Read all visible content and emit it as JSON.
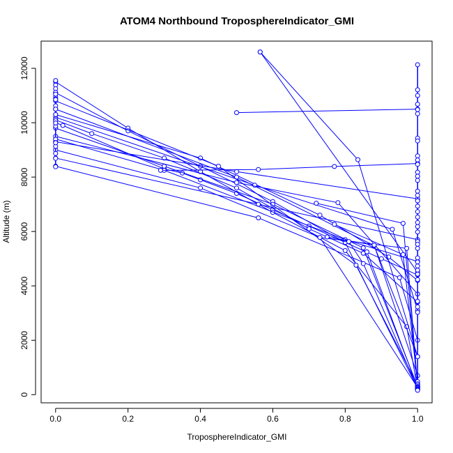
{
  "chart_data": {
    "type": "line",
    "title": "ATOM4 Northbound TroposphereIndicator_GMI",
    "xlabel": "TroposphereIndicator_GMI",
    "ylabel": "Altitude (m)",
    "xlim": [
      -0.04,
      1.04
    ],
    "ylim": [
      -300,
      13000
    ],
    "x_ticks": [
      "0.0",
      "0.2",
      "0.4",
      "0.6",
      "0.8",
      "1.0"
    ],
    "y_ticks": [
      "0",
      "2000",
      "4000",
      "6000",
      "8000",
      "10000",
      "12000"
    ],
    "grid": false,
    "legend": "none",
    "series_color": "#0000ff",
    "series": [
      {
        "x": [
          0.0,
          0.02,
          0.3,
          0.35,
          0.4,
          0.5,
          0.6,
          0.7,
          0.8,
          0.9,
          1.0
        ],
        "y": [
          10000,
          9900,
          8300,
          8150,
          7900,
          7400,
          6800,
          6200,
          5600,
          5000,
          4400
        ]
      },
      {
        "x": [
          0.0,
          0.1,
          0.3,
          0.5,
          0.7,
          0.85,
          1.0
        ],
        "y": [
          10100,
          9600,
          8700,
          7600,
          6100,
          5200,
          3400
        ]
      },
      {
        "x": [
          0.0,
          0.2,
          0.4,
          0.6,
          0.8,
          0.97,
          1.0
        ],
        "y": [
          11500,
          9800,
          8200,
          6700,
          5300,
          2500,
          200
        ]
      },
      {
        "x": [
          0.0,
          0.2,
          0.4,
          0.6,
          0.8,
          1.0
        ],
        "y": [
          11100,
          9700,
          8400,
          7100,
          5600,
          230
        ]
      },
      {
        "x": [
          0.0,
          0.5,
          1.0
        ],
        "y": [
          9300,
          8200,
          7200
        ]
      },
      {
        "x": [
          0.0,
          0.56,
          1.0
        ],
        "y": [
          8700,
          7000,
          5700
        ]
      },
      {
        "x": [
          0.0,
          0.3,
          0.8,
          1.0
        ],
        "y": [
          9400,
          8250,
          5700,
          4900
        ]
      },
      {
        "x": [
          0.0,
          0.4,
          0.73,
          1.0
        ],
        "y": [
          9000,
          7600,
          5780,
          260
        ]
      },
      {
        "x": [
          0.0,
          0.56,
          0.95,
          1.0
        ],
        "y": [
          8400,
          6500,
          4300,
          2000
        ]
      },
      {
        "x": [
          0.0,
          0.3,
          0.6,
          0.85,
          1.0
        ],
        "y": [
          9800,
          8400,
          7000,
          5400,
          300
        ]
      },
      {
        "x": [
          0.0,
          0.4,
          0.73,
          0.92,
          1.0
        ],
        "y": [
          10300,
          8700,
          6600,
          5060,
          4200
        ]
      },
      {
        "x": [
          0.0,
          0.45,
          0.83,
          1.0
        ],
        "y": [
          10800,
          8400,
          4760,
          350
        ]
      },
      {
        "x": [
          0.0,
          0.5,
          0.88,
          1.0
        ],
        "y": [
          10500,
          8000,
          5480,
          1400
        ]
      },
      {
        "x": [
          0.0,
          0.55,
          0.93,
          1.0
        ],
        "y": [
          10200,
          7700,
          6080,
          3100
        ]
      },
      {
        "x": [
          0.0,
          0.5,
          0.78,
          1.0
        ],
        "y": [
          9500,
          7800,
          7060,
          3700
        ]
      },
      {
        "x": [
          0.29,
          0.56,
          0.77,
          1.0
        ],
        "y": [
          8250,
          8280,
          8390,
          8500
        ]
      },
      {
        "x": [
          0.5,
          1.0
        ],
        "y": [
          10370,
          10500
        ]
      },
      {
        "x": [
          0.565,
          1.0
        ],
        "y": [
          12600,
          4500
        ]
      },
      {
        "x": [
          0.565,
          0.835,
          1.0
        ],
        "y": [
          12600,
          8640,
          1400
        ]
      },
      {
        "x": [
          0.72,
          0.96,
          1.0
        ],
        "y": [
          7040,
          6300,
          180
        ]
      },
      {
        "x": [
          0.73,
          0.97,
          1.0
        ],
        "y": [
          5780,
          5380,
          300
        ]
      },
      {
        "x": [
          0.75,
          0.88,
          1.0
        ],
        "y": [
          5800,
          5500,
          700
        ]
      },
      {
        "x": [
          0.77,
          0.96,
          1.0
        ],
        "y": [
          6260,
          5150,
          400
        ]
      },
      {
        "x": [
          0.81,
          0.85,
          1.0
        ],
        "y": [
          5630,
          4820,
          220
        ]
      },
      {
        "x": [
          0.86,
          1.0
        ],
        "y": [
          5250,
          250
        ]
      },
      {
        "x": [
          0.0,
          0.0,
          0.0,
          0.0,
          0.0,
          0.0,
          0.0,
          0.0,
          0.0,
          0.0,
          0.0,
          0.0,
          0.0,
          0.0,
          0.0,
          0.0,
          0.0,
          0.0,
          0.0,
          0.0,
          0.0,
          0.0
        ],
        "y": [
          11550,
          11380,
          11250,
          11120,
          10950,
          10870,
          10620,
          10500,
          10300,
          10130,
          10070,
          9870,
          9390,
          9270,
          9130,
          8870,
          8690,
          8380,
          11050,
          10850,
          9990,
          9260
        ],
        "markers_only": true
      },
      {
        "x": [
          1.0,
          1.0,
          1.0,
          1.0,
          1.0,
          1.0,
          1.0,
          1.0,
          1.0,
          1.0,
          1.0,
          1.0,
          1.0,
          1.0,
          1.0,
          1.0,
          1.0,
          1.0,
          1.0,
          1.0,
          1.0,
          1.0,
          1.0,
          1.0,
          1.0,
          1.0,
          1.0,
          1.0,
          1.0,
          1.0,
          1.0,
          1.0,
          1.0,
          1.0,
          1.0,
          1.0,
          1.0,
          1.0,
          1.0,
          1.0,
          1.0,
          1.0,
          1.0,
          1.0,
          1.0,
          1.0
        ],
        "y": [
          12130,
          11210,
          11000,
          10680,
          10480,
          10330,
          9430,
          9330,
          8780,
          8630,
          8470,
          8180,
          8030,
          7880,
          7480,
          7330,
          7130,
          6930,
          6730,
          6530,
          6330,
          6180,
          5980,
          5630,
          5530,
          5380,
          5030,
          4880,
          4730,
          4580,
          4430,
          4230,
          3430,
          3230,
          3030,
          1400,
          480,
          400,
          350,
          300,
          280,
          250,
          220,
          200,
          180,
          160
        ],
        "markers_only": true
      }
    ]
  }
}
